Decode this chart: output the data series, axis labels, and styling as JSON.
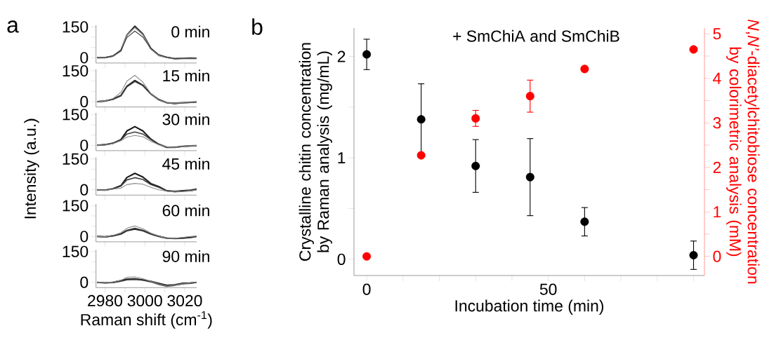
{
  "chart_data": [
    {
      "type": "line",
      "title": "0 min",
      "annotations": [
        "a"
      ],
      "x": [
        2976,
        2980,
        2984,
        2988,
        2991,
        2995,
        2999,
        3003,
        3007,
        3011,
        3015,
        3019,
        3023,
        3026
      ],
      "xlim": [
        2975.5,
        3026
      ],
      "ylim": [
        -26,
        158
      ],
      "xticks": [
        2980,
        {
          "value": 2990,
          "label": null
        },
        3000,
        {
          "value": 3010,
          "label": null
        },
        3020
      ],
      "yticks": [
        0,
        {
          "value": 50,
          "label": null
        },
        {
          "value": 100,
          "label": null
        },
        150
      ],
      "tick_labels": "y",
      "series": [
        {
          "color": "#1a1a1a",
          "values": [
            0,
            0,
            8,
            35,
            110,
            153,
            115,
            45,
            12,
            2,
            -5,
            -3,
            -2,
            -3
          ]
        },
        {
          "color": "#8c8c8c",
          "values": [
            0,
            0,
            8,
            38,
            110,
            147,
            112,
            42,
            10,
            0,
            -4,
            -2,
            -2,
            -3
          ]
        },
        {
          "color": "#404040",
          "values": [
            0,
            1,
            9,
            36,
            98,
            130,
            100,
            45,
            15,
            3,
            -4,
            -3,
            -2,
            -3
          ]
        }
      ]
    },
    {
      "type": "line",
      "title": "15 min",
      "x": [
        2976,
        2980,
        2984,
        2988,
        2991,
        2995,
        2999,
        3003,
        3007,
        3011,
        3015,
        3019,
        3023,
        3026
      ],
      "xlim": [
        2975.5,
        3026
      ],
      "ylim": [
        -26,
        158
      ],
      "xticks": [
        2980,
        {
          "value": 2990,
          "label": null
        },
        3000,
        {
          "value": 3010,
          "label": null
        },
        3020
      ],
      "yticks": [
        0,
        {
          "value": 50,
          "label": null
        },
        {
          "value": 100,
          "label": null
        },
        150
      ],
      "tick_labels": "y",
      "series": [
        {
          "color": "#1a1a1a",
          "values": [
            0,
            3,
            12,
            30,
            75,
            103,
            80,
            38,
            10,
            -5,
            -8,
            -5,
            -3,
            -2
          ]
        },
        {
          "color": "#404040",
          "values": [
            0,
            3,
            12,
            28,
            72,
            98,
            78,
            38,
            8,
            -5,
            -10,
            -6,
            -4,
            -2
          ]
        },
        {
          "color": "#8c8c8c",
          "values": [
            0,
            3,
            15,
            45,
            100,
            128,
            95,
            40,
            8,
            -5,
            -8,
            -5,
            -2,
            -1
          ]
        }
      ]
    },
    {
      "type": "line",
      "title": "30 min",
      "ylabel": "Intensity (a.u.)",
      "x": [
        2976,
        2980,
        2984,
        2988,
        2991,
        2995,
        2999,
        3003,
        3007,
        3011,
        3015,
        3019,
        3023,
        3026
      ],
      "xlim": [
        2975.5,
        3026
      ],
      "ylim": [
        -26,
        158
      ],
      "xticks": [
        2980,
        {
          "value": 2990,
          "label": null
        },
        3000,
        {
          "value": 3010,
          "label": null
        },
        3020
      ],
      "yticks": [
        0,
        {
          "value": 50,
          "label": null
        },
        {
          "value": 100,
          "label": null
        },
        150
      ],
      "tick_labels": "y",
      "series": [
        {
          "color": "#1a1a1a",
          "values": [
            0,
            3,
            10,
            28,
            70,
            91,
            70,
            30,
            5,
            -10,
            -10,
            -5,
            -3,
            -2
          ]
        },
        {
          "color": "#404040",
          "values": [
            0,
            3,
            10,
            26,
            55,
            65,
            55,
            28,
            5,
            -8,
            -10,
            -6,
            -3,
            -2
          ]
        },
        {
          "color": "#8c8c8c",
          "values": [
            0,
            2,
            8,
            22,
            40,
            48,
            42,
            20,
            3,
            -8,
            -12,
            -6,
            -3,
            -2
          ]
        }
      ]
    },
    {
      "type": "line",
      "title": "45 min",
      "x": [
        2976,
        2980,
        2984,
        2988,
        2991,
        2995,
        2999,
        3003,
        3007,
        3011,
        3015,
        3019,
        3023,
        3026
      ],
      "xlim": [
        2975.5,
        3026
      ],
      "ylim": [
        -26,
        158
      ],
      "xticks": [
        2980,
        {
          "value": 2990,
          "label": null
        },
        3000,
        {
          "value": 3010,
          "label": null
        },
        3020
      ],
      "yticks": [
        0,
        {
          "value": 50,
          "label": null
        },
        {
          "value": 100,
          "label": null
        },
        150
      ],
      "tick_labels": "y",
      "series": [
        {
          "color": "#1a1a1a",
          "values": [
            0,
            -2,
            5,
            20,
            60,
            80,
            62,
            30,
            15,
            -5,
            -8,
            -5,
            -2,
            3
          ]
        },
        {
          "color": "#404040",
          "values": [
            0,
            -2,
            5,
            18,
            48,
            59,
            50,
            25,
            12,
            -5,
            -10,
            -8,
            -5,
            0
          ]
        },
        {
          "color": "#8c8c8c",
          "values": [
            0,
            -3,
            3,
            8,
            25,
            31,
            27,
            12,
            0,
            -7,
            -10,
            -8,
            -5,
            0
          ]
        }
      ]
    },
    {
      "type": "line",
      "title": "60 min",
      "x": [
        2976,
        2980,
        2984,
        2988,
        2991,
        2995,
        2999,
        3003,
        3007,
        3011,
        3015,
        3019,
        3023,
        3026
      ],
      "xlim": [
        2975.5,
        3026
      ],
      "ylim": [
        -26,
        158
      ],
      "xticks": [
        2980,
        {
          "value": 2990,
          "label": null
        },
        3000,
        {
          "value": 3010,
          "label": null
        },
        3020
      ],
      "yticks": [
        0,
        {
          "value": 50,
          "label": null
        },
        {
          "value": 100,
          "label": null
        },
        150
      ],
      "tick_labels": "y",
      "series": [
        {
          "color": "#1a1a1a",
          "values": [
            0,
            -2,
            3,
            12,
            28,
            36,
            28,
            12,
            0,
            -8,
            -10,
            -8,
            -5,
            0
          ]
        },
        {
          "color": "#404040",
          "values": [
            0,
            -2,
            3,
            14,
            30,
            40,
            30,
            14,
            2,
            -8,
            -10,
            -6,
            -3,
            0
          ]
        },
        {
          "color": "#8c8c8c",
          "values": [
            0,
            -2,
            5,
            18,
            40,
            51,
            38,
            16,
            2,
            -7,
            -10,
            -5,
            0,
            2
          ]
        }
      ]
    },
    {
      "type": "line",
      "title": "90 min",
      "xlabel": "Raman shift (cm$^{-1}$)",
      "x": [
        2976,
        2980,
        2984,
        2988,
        2991,
        2995,
        2999,
        3003,
        3007,
        3011,
        3015,
        3019,
        3023,
        3026
      ],
      "xlim": [
        2975.5,
        3026
      ],
      "ylim": [
        -26,
        158
      ],
      "xticks": [
        2980,
        {
          "value": 2990,
          "label": null
        },
        3000,
        {
          "value": 3010,
          "label": null
        },
        3020
      ],
      "yticks": [
        0,
        {
          "value": 50,
          "label": null
        },
        {
          "value": 100,
          "label": null
        },
        150
      ],
      "series": [
        {
          "color": "#1a1a1a",
          "values": [
            0,
            -3,
            0,
            8,
            15,
            17,
            12,
            5,
            -5,
            -15,
            -12,
            -5,
            -3,
            0
          ]
        },
        {
          "color": "#404040",
          "values": [
            0,
            -3,
            -2,
            5,
            12,
            14,
            10,
            2,
            -10,
            -20,
            -15,
            -8,
            -5,
            -1
          ]
        },
        {
          "color": "#8c8c8c",
          "values": [
            0,
            -2,
            2,
            10,
            24,
            26,
            18,
            5,
            -8,
            -18,
            -14,
            -6,
            -2,
            0
          ]
        }
      ]
    },
    {
      "type": "scatter",
      "title": "+ SmChiA and SmChiB",
      "annotations": [
        "b"
      ],
      "xlabel": "Incubation time (min)",
      "ylabel": "Crystalline chitin concentration by Raman analysis (mg/mL)",
      "y2label": "*N*,*N’*-diacetylchitobiose concentration by colorimetric analysis (mM)",
      "x": [
        0,
        15,
        30,
        45,
        60,
        90
      ],
      "xlim": [
        -3.5,
        93
      ],
      "ylim": [
        -0.16,
        2.28
      ],
      "y2lim": [
        -0.43,
        5.13
      ],
      "xticks": [
        0,
        {
          "value": 10,
          "label": null
        },
        {
          "value": 20,
          "label": null
        },
        {
          "value": 30,
          "label": null
        },
        {
          "value": 40,
          "label": null
        },
        50,
        {
          "value": 60,
          "label": null
        },
        {
          "value": 70,
          "label": null
        },
        {
          "value": 80,
          "label": null
        },
        {
          "value": 90,
          "label": null
        }
      ],
      "yticks": [
        0,
        {
          "value": 0.5,
          "label": null
        },
        1,
        {
          "value": 1.5,
          "label": null
        },
        2
      ],
      "y2ticks": [
        0,
        {
          "value": 0.5,
          "label": null
        },
        1,
        {
          "value": 1.5,
          "label": null
        },
        2,
        {
          "value": 2.5,
          "label": null
        },
        3,
        {
          "value": 3.5,
          "label": null
        },
        4,
        {
          "value": 4.5,
          "label": null
        },
        5
      ],
      "series": [
        {
          "color": "#000000",
          "values": [
            2.02,
            1.38,
            0.92,
            0.81,
            0.37,
            0.04
          ],
          "errors": [
            0.15,
            0.35,
            0.26,
            0.38,
            0.14,
            0.14
          ]
        },
        {
          "color": "#ff0000",
          "axis": "y2",
          "values": [
            0,
            2.27,
            3.1,
            3.6,
            4.21,
            4.65
          ],
          "errors": [
            null,
            null,
            0.18,
            0.36,
            null,
            null
          ]
        }
      ]
    }
  ]
}
